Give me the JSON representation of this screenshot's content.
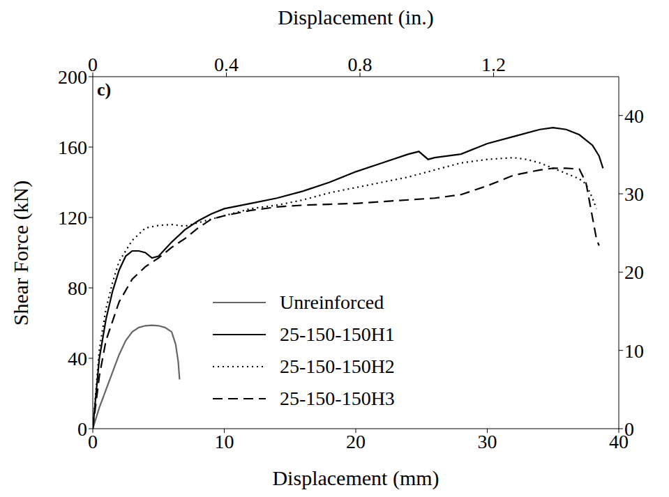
{
  "chart_data": {
    "type": "line",
    "panel_label": "c)",
    "x_label": "Displacement (mm)",
    "x2_label": "Displacement (in.)",
    "y_label": "Shear Force (kN)",
    "xlim": [
      0,
      40
    ],
    "xticks": [
      0,
      10,
      20,
      30,
      40
    ],
    "x2lim": [
      0,
      1.5748
    ],
    "x2ticks": [
      0,
      0.4,
      0.8,
      1.2
    ],
    "ylim": [
      0,
      200
    ],
    "yticks": [
      0,
      40,
      80,
      120,
      160,
      200
    ],
    "y2lim": [
      0,
      44.96
    ],
    "y2ticks": [
      0,
      10,
      20,
      30,
      40
    ],
    "grid": false,
    "legend": "lower center",
    "series": [
      {
        "name": "Unreinforced",
        "color": "#666666",
        "line_style": "solid",
        "x": [
          0,
          0.5,
          1,
          1.5,
          2,
          2.5,
          3,
          3.5,
          4,
          4.5,
          5,
          5.5,
          6,
          6.3,
          6.5,
          6.6
        ],
        "values": [
          0,
          12,
          22,
          32,
          42,
          50,
          55,
          57.5,
          58.5,
          58.8,
          58.5,
          57.5,
          55,
          48,
          38,
          28
        ]
      },
      {
        "name": "25-150-150H1",
        "color": "#000000",
        "line_style": "solid",
        "x": [
          0,
          0.5,
          1,
          1.5,
          2,
          2.5,
          3,
          3.5,
          4,
          4.5,
          5,
          6,
          7,
          8,
          9,
          10,
          12,
          14,
          16,
          18,
          20,
          22,
          24,
          24.8,
          25.5,
          26,
          28,
          30,
          32,
          34,
          35,
          36,
          37,
          38,
          38.5,
          38.8
        ],
        "values": [
          0,
          40,
          62,
          78,
          90,
          98,
          101,
          101,
          100,
          97,
          98,
          106,
          113,
          118,
          122,
          125,
          128,
          131,
          135,
          140,
          146,
          151,
          156,
          157.5,
          153,
          154,
          156,
          162,
          166,
          170,
          171,
          170,
          167,
          161,
          155,
          148
        ]
      },
      {
        "name": "25-150-150H2",
        "color": "#000000",
        "line_style": "dotted",
        "x": [
          0,
          0.5,
          1,
          1.5,
          2,
          3,
          4,
          5,
          6,
          7,
          8,
          10,
          12,
          14,
          16,
          18,
          20,
          22,
          24,
          26,
          28,
          30,
          32,
          33,
          34,
          35,
          36,
          37,
          37.5,
          38,
          38.3
        ],
        "values": [
          0,
          45,
          68,
          83,
          95,
          107,
          114,
          115.5,
          116,
          115,
          117,
          121,
          125,
          127,
          130,
          134,
          137,
          140,
          143,
          147,
          151,
          153,
          154,
          153,
          151,
          148,
          145,
          142,
          139,
          131,
          125
        ]
      },
      {
        "name": "25-150-150H3",
        "color": "#000000",
        "line_style": "dashed",
        "x": [
          0,
          0.5,
          1,
          2,
          3,
          4,
          5,
          6,
          7,
          8,
          9,
          10,
          12,
          14,
          16,
          18,
          20,
          22,
          24,
          26,
          28,
          30,
          32,
          34,
          35,
          36,
          37,
          37.5,
          38,
          38.3,
          38.5
        ],
        "values": [
          0,
          30,
          50,
          72,
          85,
          92,
          97,
          103,
          108,
          114,
          119,
          121,
          124,
          126,
          127,
          127.5,
          128,
          129,
          130,
          131,
          133,
          138,
          144,
          147,
          148,
          148,
          147.5,
          140,
          120,
          108,
          104
        ]
      }
    ]
  }
}
